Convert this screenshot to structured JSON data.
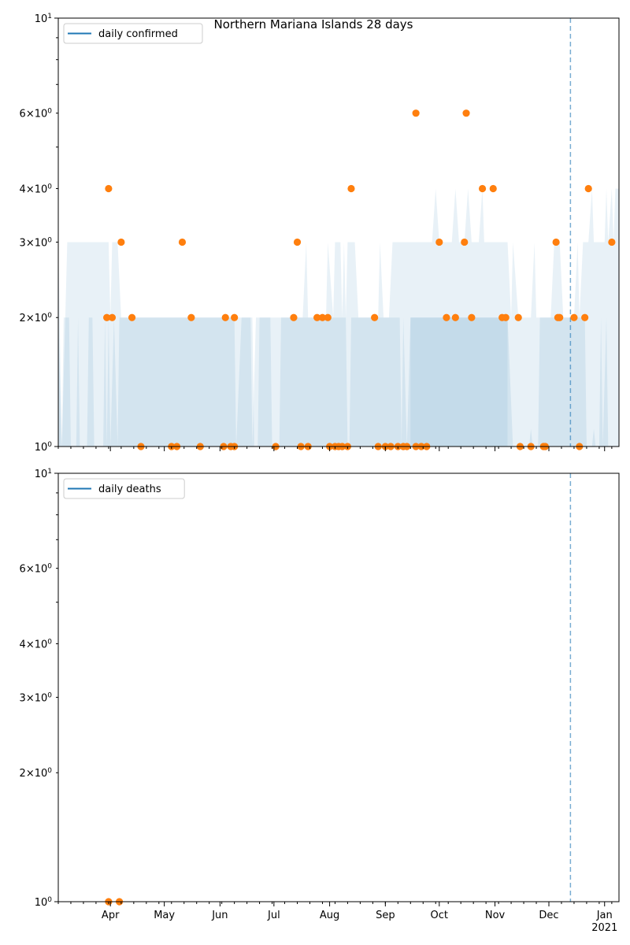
{
  "figure_title": "Northern Mariana Islands 28 days",
  "colors": {
    "band": "#1f77b4",
    "line": "#1f77b4",
    "points": "#ff7f0e",
    "vline": "#1f77b4",
    "axis": "#000000"
  },
  "chart_data": [
    {
      "type": "scatter",
      "title": "",
      "legend": {
        "label": "daily confirmed",
        "placement": "top-left"
      },
      "xlabel": "",
      "ylabel": "",
      "yscale": "log",
      "ylim": [
        1,
        10
      ],
      "xlim": [
        "2020-03-03",
        "2021-01-09"
      ],
      "reference_line_date": "2020-12-13",
      "y_major_ticks": [
        {
          "value": 1,
          "base": "10",
          "exp": "0"
        },
        {
          "value": 10,
          "base": "10",
          "exp": "1"
        }
      ],
      "y_minor_ticks": [
        {
          "value": 2,
          "mant": "2",
          "base": "10",
          "exp": "0"
        },
        {
          "value": 3,
          "mant": "3",
          "base": "10",
          "exp": "0"
        },
        {
          "value": 4,
          "mant": "4",
          "base": "10",
          "exp": "0"
        },
        {
          "value": 6,
          "mant": "6",
          "base": "10",
          "exp": "0"
        }
      ],
      "y_minor_unlabeled": [
        5,
        7,
        8,
        9
      ],
      "x_ticks": [
        {
          "date": "2020-04-01",
          "label": "Apr"
        },
        {
          "date": "2020-05-01",
          "label": "May"
        },
        {
          "date": "2020-06-01",
          "label": "Jun"
        },
        {
          "date": "2020-07-01",
          "label": "Jul"
        },
        {
          "date": "2020-08-01",
          "label": "Aug"
        },
        {
          "date": "2020-09-01",
          "label": "Sep"
        },
        {
          "date": "2020-10-01",
          "label": "Oct"
        },
        {
          "date": "2020-11-01",
          "label": "Nov"
        },
        {
          "date": "2020-12-01",
          "label": "Dec"
        },
        {
          "date": "2021-01-01",
          "label": "Jan",
          "sublabel": "2021"
        }
      ],
      "points": [
        {
          "x": "2020-03-30",
          "y": 2
        },
        {
          "x": "2020-03-31",
          "y": 4
        },
        {
          "x": "2020-04-02",
          "y": 2
        },
        {
          "x": "2020-04-07",
          "y": 3
        },
        {
          "x": "2020-04-13",
          "y": 2
        },
        {
          "x": "2020-04-18",
          "y": 1
        },
        {
          "x": "2020-05-05",
          "y": 1
        },
        {
          "x": "2020-05-08",
          "y": 1
        },
        {
          "x": "2020-05-11",
          "y": 3
        },
        {
          "x": "2020-05-16",
          "y": 2
        },
        {
          "x": "2020-05-21",
          "y": 1
        },
        {
          "x": "2020-06-03",
          "y": 1
        },
        {
          "x": "2020-06-04",
          "y": 2
        },
        {
          "x": "2020-06-07",
          "y": 1
        },
        {
          "x": "2020-06-09",
          "y": 1
        },
        {
          "x": "2020-06-09",
          "y": 2
        },
        {
          "x": "2020-07-02",
          "y": 1
        },
        {
          "x": "2020-07-12",
          "y": 2
        },
        {
          "x": "2020-07-14",
          "y": 3
        },
        {
          "x": "2020-07-16",
          "y": 1
        },
        {
          "x": "2020-07-20",
          "y": 1
        },
        {
          "x": "2020-07-25",
          "y": 2
        },
        {
          "x": "2020-07-28",
          "y": 2
        },
        {
          "x": "2020-07-31",
          "y": 2
        },
        {
          "x": "2020-08-01",
          "y": 1
        },
        {
          "x": "2020-08-04",
          "y": 1
        },
        {
          "x": "2020-08-06",
          "y": 1
        },
        {
          "x": "2020-08-08",
          "y": 1
        },
        {
          "x": "2020-08-11",
          "y": 1
        },
        {
          "x": "2020-08-13",
          "y": 4
        },
        {
          "x": "2020-08-26",
          "y": 2
        },
        {
          "x": "2020-08-28",
          "y": 1
        },
        {
          "x": "2020-09-01",
          "y": 1
        },
        {
          "x": "2020-09-04",
          "y": 1
        },
        {
          "x": "2020-09-08",
          "y": 1
        },
        {
          "x": "2020-09-11",
          "y": 1
        },
        {
          "x": "2020-09-13",
          "y": 1
        },
        {
          "x": "2020-09-18",
          "y": 1
        },
        {
          "x": "2020-09-18",
          "y": 6
        },
        {
          "x": "2020-09-21",
          "y": 1
        },
        {
          "x": "2020-09-24",
          "y": 1
        },
        {
          "x": "2020-10-01",
          "y": 3
        },
        {
          "x": "2020-10-05",
          "y": 2
        },
        {
          "x": "2020-10-10",
          "y": 2
        },
        {
          "x": "2020-10-15",
          "y": 3
        },
        {
          "x": "2020-10-16",
          "y": 6
        },
        {
          "x": "2020-10-19",
          "y": 2
        },
        {
          "x": "2020-10-25",
          "y": 4
        },
        {
          "x": "2020-10-31",
          "y": 4
        },
        {
          "x": "2020-11-05",
          "y": 2
        },
        {
          "x": "2020-11-07",
          "y": 2
        },
        {
          "x": "2020-11-14",
          "y": 2
        },
        {
          "x": "2020-11-15",
          "y": 1
        },
        {
          "x": "2020-11-21",
          "y": 1
        },
        {
          "x": "2020-11-28",
          "y": 1
        },
        {
          "x": "2020-11-29",
          "y": 1
        },
        {
          "x": "2020-12-05",
          "y": 3
        },
        {
          "x": "2020-12-06",
          "y": 2
        },
        {
          "x": "2020-12-07",
          "y": 2
        },
        {
          "x": "2020-12-15",
          "y": 2
        },
        {
          "x": "2020-12-18",
          "y": 1
        },
        {
          "x": "2020-12-21",
          "y": 2
        },
        {
          "x": "2020-12-23",
          "y": 4
        },
        {
          "x": "2021-01-05",
          "y": 3
        }
      ],
      "band_outer": [
        [
          "2020-03-03",
          3
        ],
        [
          "2020-03-05",
          1
        ],
        [
          "2020-03-08",
          3
        ],
        [
          "2020-03-31",
          3
        ],
        [
          "2020-04-01",
          2
        ],
        [
          "2020-04-02",
          3
        ],
        [
          "2020-04-05",
          3
        ],
        [
          "2020-04-07",
          2
        ],
        [
          "2020-06-09",
          2
        ],
        [
          "2020-06-10",
          1
        ],
        [
          "2020-06-13",
          2
        ],
        [
          "2020-06-18",
          2
        ],
        [
          "2020-06-19",
          1
        ],
        [
          "2020-06-21",
          2
        ],
        [
          "2020-07-17",
          2
        ],
        [
          "2020-07-19",
          3
        ],
        [
          "2020-07-20",
          2
        ],
        [
          "2020-07-30",
          2
        ],
        [
          "2020-07-31",
          3
        ],
        [
          "2020-08-03",
          2
        ],
        [
          "2020-08-04",
          3
        ],
        [
          "2020-08-07",
          3
        ],
        [
          "2020-08-08",
          2
        ],
        [
          "2020-08-09",
          3
        ],
        [
          "2020-08-10",
          2
        ],
        [
          "2020-08-11",
          3
        ],
        [
          "2020-08-15",
          3
        ],
        [
          "2020-08-17",
          2
        ],
        [
          "2020-08-28",
          2
        ],
        [
          "2020-08-29",
          3
        ],
        [
          "2020-08-31",
          2
        ],
        [
          "2020-09-03",
          2
        ],
        [
          "2020-09-05",
          3
        ],
        [
          "2020-09-27",
          3
        ],
        [
          "2020-09-29",
          4
        ],
        [
          "2020-10-01",
          3
        ],
        [
          "2020-10-04",
          3
        ],
        [
          "2020-10-08",
          3
        ],
        [
          "2020-10-10",
          4
        ],
        [
          "2020-10-12",
          3
        ],
        [
          "2020-10-15",
          3
        ],
        [
          "2020-10-17",
          4
        ],
        [
          "2020-10-19",
          3
        ],
        [
          "2020-10-23",
          3
        ],
        [
          "2020-10-25",
          4
        ],
        [
          "2020-10-26",
          3
        ],
        [
          "2020-11-08",
          3
        ],
        [
          "2020-11-10",
          2
        ],
        [
          "2020-11-11",
          3
        ],
        [
          "2020-11-14",
          2
        ],
        [
          "2020-11-21",
          2
        ],
        [
          "2020-11-23",
          3
        ],
        [
          "2020-11-24",
          2
        ],
        [
          "2020-12-02",
          2
        ],
        [
          "2020-12-04",
          3
        ],
        [
          "2020-12-07",
          3
        ],
        [
          "2020-12-09",
          2
        ],
        [
          "2020-12-15",
          2
        ],
        [
          "2020-12-17",
          3
        ],
        [
          "2020-12-18",
          2
        ],
        [
          "2020-12-20",
          3
        ],
        [
          "2020-12-23",
          3
        ],
        [
          "2020-12-25",
          4
        ],
        [
          "2020-12-26",
          3
        ],
        [
          "2021-01-01",
          3
        ],
        [
          "2021-01-02",
          4
        ],
        [
          "2021-01-03",
          3
        ],
        [
          "2021-01-05",
          4
        ],
        [
          "2021-01-06",
          3
        ],
        [
          "2021-01-07",
          4
        ],
        [
          "2021-01-09",
          4
        ]
      ],
      "band_inner": [
        [
          "2020-03-03",
          2
        ],
        [
          "2020-03-05",
          1
        ],
        [
          "2020-03-06",
          2
        ],
        [
          "2020-03-09",
          2
        ],
        [
          "2020-03-10",
          1
        ],
        [
          "2020-03-13",
          1
        ],
        [
          "2020-03-14",
          2
        ],
        [
          "2020-03-15",
          1
        ],
        [
          "2020-03-19",
          1
        ],
        [
          "2020-03-20",
          2
        ],
        [
          "2020-03-22",
          2
        ],
        [
          "2020-03-23",
          1
        ],
        [
          "2020-03-28",
          1
        ],
        [
          "2020-03-29",
          2
        ],
        [
          "2020-03-30",
          1
        ],
        [
          "2020-03-31",
          2
        ],
        [
          "2020-04-01",
          1
        ],
        [
          "2020-04-03",
          2
        ],
        [
          "2020-04-05",
          1
        ],
        [
          "2020-04-06",
          2
        ],
        [
          "2020-06-19",
          2
        ],
        [
          "2020-06-20",
          1
        ],
        [
          "2020-06-22",
          1
        ],
        [
          "2020-06-23",
          2
        ],
        [
          "2020-06-29",
          2
        ],
        [
          "2020-06-30",
          1
        ],
        [
          "2020-07-04",
          1
        ],
        [
          "2020-07-05",
          2
        ],
        [
          "2020-08-10",
          2
        ],
        [
          "2020-08-11",
          1
        ],
        [
          "2020-08-12",
          1
        ],
        [
          "2020-08-13",
          2
        ],
        [
          "2020-09-09",
          2
        ],
        [
          "2020-09-10",
          1
        ],
        [
          "2020-09-11",
          2
        ],
        [
          "2020-09-13",
          1
        ],
        [
          "2020-09-15",
          2
        ],
        [
          "2020-11-08",
          2
        ],
        [
          "2020-11-11",
          1
        ],
        [
          "2020-11-20",
          1
        ],
        [
          "2020-11-21",
          1.1
        ],
        [
          "2020-11-22",
          1
        ],
        [
          "2020-11-25",
          1
        ],
        [
          "2020-11-26",
          2
        ],
        [
          "2020-12-21",
          2
        ],
        [
          "2020-12-22",
          1
        ],
        [
          "2020-12-25",
          1
        ],
        [
          "2020-12-26",
          1.1
        ],
        [
          "2020-12-27",
          1
        ],
        [
          "2020-12-29",
          1
        ],
        [
          "2020-12-30",
          2
        ],
        [
          "2020-12-31",
          1
        ],
        [
          "2021-01-02",
          2
        ],
        [
          "2021-01-03",
          1
        ],
        [
          "2021-01-09",
          1
        ]
      ],
      "band_dark": [
        [
          "2020-09-15",
          2
        ],
        [
          "2020-11-08",
          2
        ]
      ]
    },
    {
      "type": "scatter",
      "title": "",
      "legend": {
        "label": "daily deaths",
        "placement": "top-left"
      },
      "xlabel": "",
      "ylabel": "",
      "yscale": "log",
      "ylim": [
        1,
        10
      ],
      "xlim": [
        "2020-03-03",
        "2021-01-09"
      ],
      "reference_line_date": "2020-12-13",
      "y_major_ticks": [
        {
          "value": 1,
          "base": "10",
          "exp": "0"
        },
        {
          "value": 10,
          "base": "10",
          "exp": "1"
        }
      ],
      "y_minor_ticks": [
        {
          "value": 2,
          "mant": "2",
          "base": "10",
          "exp": "0"
        },
        {
          "value": 3,
          "mant": "3",
          "base": "10",
          "exp": "0"
        },
        {
          "value": 4,
          "mant": "4",
          "base": "10",
          "exp": "0"
        },
        {
          "value": 6,
          "mant": "6",
          "base": "10",
          "exp": "0"
        }
      ],
      "y_minor_unlabeled": [
        5,
        7,
        8,
        9
      ],
      "x_ticks": [
        {
          "date": "2020-04-01",
          "label": "Apr"
        },
        {
          "date": "2020-05-01",
          "label": "May"
        },
        {
          "date": "2020-06-01",
          "label": "Jun"
        },
        {
          "date": "2020-07-01",
          "label": "Jul"
        },
        {
          "date": "2020-08-01",
          "label": "Aug"
        },
        {
          "date": "2020-09-01",
          "label": "Sep"
        },
        {
          "date": "2020-10-01",
          "label": "Oct"
        },
        {
          "date": "2020-11-01",
          "label": "Nov"
        },
        {
          "date": "2020-12-01",
          "label": "Dec"
        },
        {
          "date": "2021-01-01",
          "label": "Jan",
          "sublabel": "2021"
        }
      ],
      "points": [
        {
          "x": "2020-03-31",
          "y": 1
        },
        {
          "x": "2020-04-06",
          "y": 1
        }
      ],
      "band_outer": [],
      "band_inner": [],
      "band_dark": []
    }
  ]
}
